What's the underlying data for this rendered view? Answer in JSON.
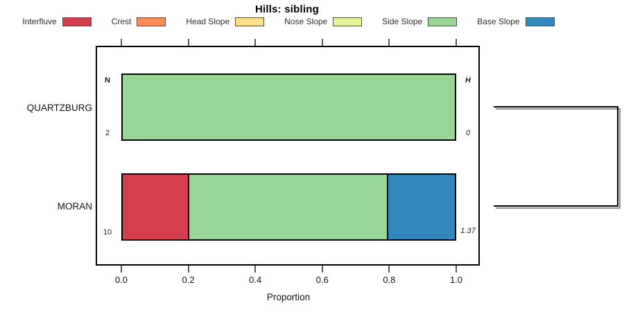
{
  "title": "Hills: sibling",
  "legend": {
    "position": "top",
    "items": [
      {
        "label": "Interfluve",
        "color": "#d53e4f"
      },
      {
        "label": "Crest",
        "color": "#fc8d59"
      },
      {
        "label": "Head Slope",
        "color": "#fee08b"
      },
      {
        "label": "Nose Slope",
        "color": "#e6f598"
      },
      {
        "label": "Side Slope",
        "color": "#99d594"
      },
      {
        "label": "Base Slope",
        "color": "#3288bd"
      }
    ]
  },
  "chart_data": {
    "type": "bar",
    "orientation": "horizontal",
    "stacked": true,
    "title": "Hills: sibling",
    "xlabel": "Proportion",
    "ylabel": "",
    "xlim": [
      0.0,
      1.0
    ],
    "xticks": [
      "0.0",
      "0.2",
      "0.4",
      "0.6",
      "0.8",
      "1.0"
    ],
    "grid": false,
    "categories": [
      "QUARTZBURG",
      "MORAN"
    ],
    "series": [
      {
        "name": "Interfluve",
        "color": "#d53e4f",
        "values": [
          0.0,
          0.2
        ]
      },
      {
        "name": "Crest",
        "color": "#fc8d59",
        "values": [
          0.0,
          0.0
        ]
      },
      {
        "name": "Head Slope",
        "color": "#fee08b",
        "values": [
          0.0,
          0.0
        ]
      },
      {
        "name": "Nose Slope",
        "color": "#e6f598",
        "values": [
          0.0,
          0.0
        ]
      },
      {
        "name": "Side Slope",
        "color": "#99d594",
        "values": [
          1.0,
          0.6
        ]
      },
      {
        "name": "Base Slope",
        "color": "#3288bd",
        "values": [
          0.0,
          0.2
        ]
      }
    ],
    "annotations": {
      "left_header": "N",
      "right_header": "H",
      "rows": [
        {
          "category": "QUARTZBURG",
          "n": "2",
          "h": "0"
        },
        {
          "category": "MORAN",
          "n": "10",
          "h": "1.37"
        }
      ]
    },
    "right_panel": "sibling-cluster-bracket"
  }
}
